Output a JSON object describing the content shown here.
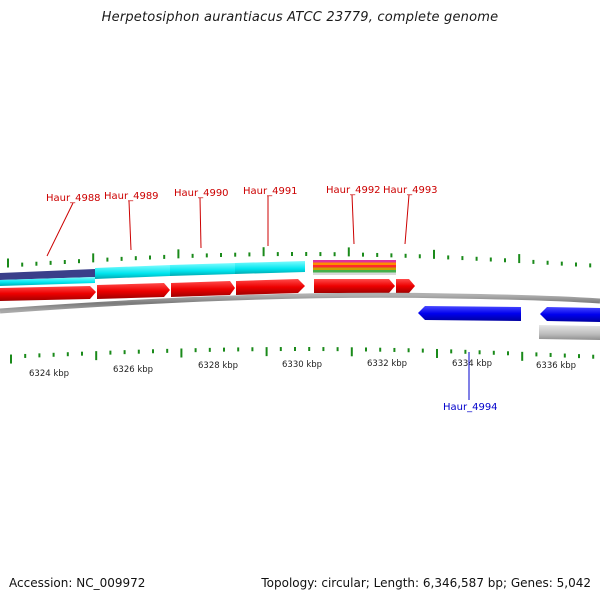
{
  "title": "Herpetosiphon aurantiacus ATCC 23779, complete genome",
  "footer": {
    "accession": "Accession: NC_009972",
    "summary": "Topology: circular; Length: 6,346,587 bp; Genes: 5,042"
  },
  "ruler_labels": [
    "6324 kbp",
    "6326 kbp",
    "6328 kbp",
    "6330 kbp",
    "6332 kbp",
    "6334 kbp",
    "6336 kbp"
  ],
  "colors": {
    "forward_gene": "#ff0000",
    "reverse_gene": "#0000ff",
    "pseudo_or_other": "#bbbbbb",
    "cog_cyan": "#00e5ee",
    "cog_navy": "#3a3f8a",
    "backbone": "#888888",
    "tick": "#1a8a1a",
    "forward_label": "#cc0000",
    "reverse_label": "#0000cc"
  },
  "gene_labels": [
    {
      "id": "Haur_4988",
      "strand": "forward"
    },
    {
      "id": "Haur_4989",
      "strand": "forward"
    },
    {
      "id": "Haur_4990",
      "strand": "forward"
    },
    {
      "id": "Haur_4991",
      "strand": "forward"
    },
    {
      "id": "Haur_4992",
      "strand": "forward"
    },
    {
      "id": "Haur_4993",
      "strand": "forward"
    },
    {
      "id": "Haur_4994",
      "strand": "reverse"
    }
  ]
}
